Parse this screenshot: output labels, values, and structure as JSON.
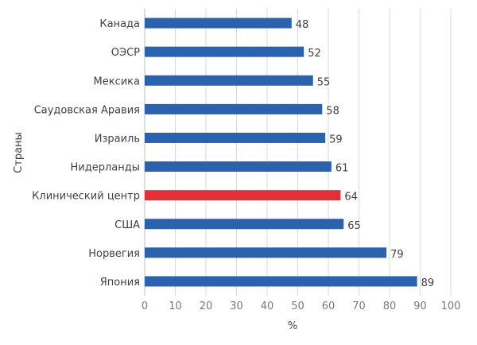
{
  "chart_data": {
    "type": "bar",
    "orientation": "horizontal",
    "title": "",
    "xlabel": "%",
    "ylabel": "Страны",
    "xlim": [
      0,
      100
    ],
    "xticks": [
      0,
      10,
      20,
      30,
      40,
      50,
      60,
      70,
      80,
      90,
      100
    ],
    "grid": true,
    "categories": [
      "Канада",
      "ОЭСР",
      "Мексика",
      "Саудовская Аравия",
      "Израиль",
      "Нидерланды",
      "Клинический центр",
      "США",
      "Норвегия",
      "Япония"
    ],
    "values": [
      48,
      52,
      55,
      58,
      59,
      61,
      64,
      65,
      79,
      89
    ],
    "value_labels": [
      "48",
      "52",
      "55",
      "58",
      "59",
      "61",
      "64",
      "65",
      "79",
      "89"
    ],
    "highlight_category": "Клинический центр",
    "colors": {
      "bar": "#2a62ad",
      "highlight": "#e33038",
      "grid": "#d9d9d9"
    }
  }
}
